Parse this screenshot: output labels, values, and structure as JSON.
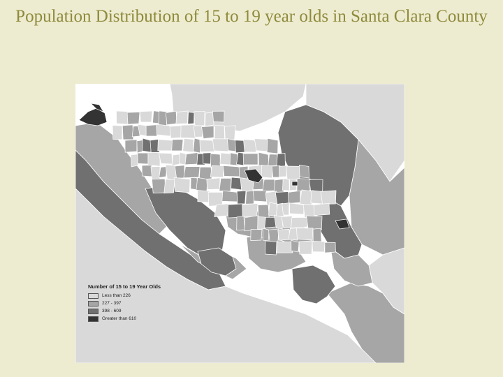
{
  "slide": {
    "title": "Population Distribution of 15 to 19 year olds in Santa Clara County"
  },
  "legend": {
    "title": "Number of 15 to 19 Year Olds",
    "items": [
      {
        "label": "Less than 226",
        "color": "#d9d9d9"
      },
      {
        "label": "227 - 397",
        "color": "#a6a6a6"
      },
      {
        "label": "398 - 609",
        "color": "#707070"
      },
      {
        "label": "Greater than 610",
        "color": "#333333"
      }
    ]
  },
  "colors": {
    "background": "#edecd0",
    "title_text": "#8f8a3c",
    "map_background": "#ffffff",
    "tract_border": "#ffffff"
  }
}
